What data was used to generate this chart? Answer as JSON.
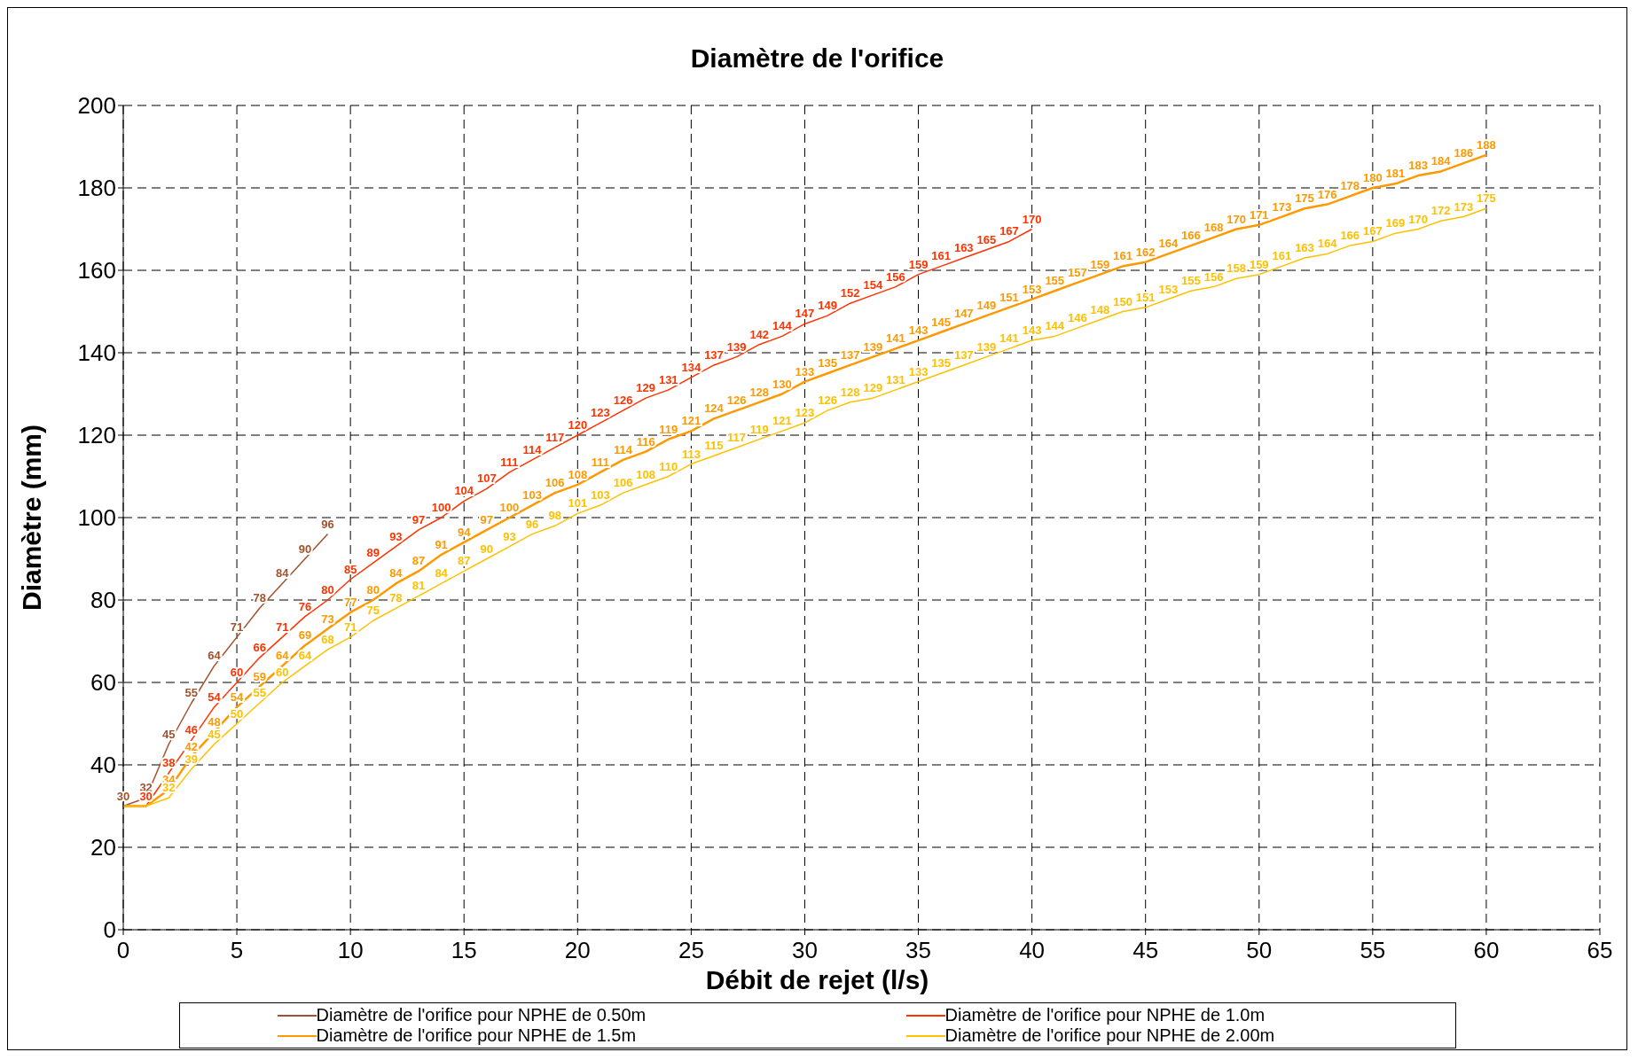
{
  "chart_data": {
    "type": "line",
    "title": "Diamètre de l'orifice",
    "xlabel": "Débit de rejet (l/s)",
    "ylabel": "Diamètre (mm)",
    "xlim": [
      0,
      65
    ],
    "xticks": [
      0,
      5,
      10,
      15,
      20,
      25,
      30,
      35,
      40,
      45,
      50,
      55,
      60,
      65
    ],
    "ylim": [
      0,
      200
    ],
    "yticks": [
      0,
      20,
      40,
      60,
      80,
      100,
      120,
      140,
      160,
      180,
      200
    ],
    "grid": true,
    "legend": "bottom",
    "marker": "none",
    "line_style": "solid",
    "series": [
      {
        "name": "Diamètre de l'orifice pour NPHE de 0.50m",
        "color": "#a0522d",
        "x": [
          0,
          1,
          2,
          3,
          4,
          5,
          6,
          7,
          8,
          9
        ],
        "values": [
          30,
          32,
          45,
          55,
          64,
          71,
          78,
          84,
          90,
          96
        ],
        "value_labels": [
          "30",
          "32",
          "45",
          "55",
          "64",
          "71",
          "78",
          "84",
          "90",
          "96"
        ]
      },
      {
        "name": "Diamètre de l'orifice pour NPHE de 1.0m",
        "color": "#ff3300",
        "x": [
          0,
          1,
          2,
          3,
          4,
          5,
          6,
          7,
          8,
          9,
          10,
          11,
          12,
          13,
          14,
          15,
          16,
          17,
          18,
          19,
          20,
          21,
          22,
          23,
          24,
          25,
          26,
          27,
          28,
          29,
          30,
          31,
          32,
          33,
          34,
          35,
          36,
          37,
          38,
          39,
          40
        ],
        "values": [
          30,
          30,
          38,
          46,
          54,
          60,
          66,
          71,
          76,
          80,
          85,
          89,
          93,
          97,
          100,
          104,
          107,
          111,
          114,
          117,
          120,
          123,
          126,
          129,
          131,
          134,
          137,
          139,
          142,
          144,
          147,
          149,
          152,
          154,
          156,
          159,
          161,
          163,
          165,
          167,
          170
        ],
        "value_labels": [
          null,
          "30",
          "38",
          "46",
          "54",
          "60",
          "66",
          "71",
          "76",
          "80",
          "85",
          "89",
          "93",
          "97",
          "100",
          "104",
          "107",
          "111",
          "114",
          "117",
          "120",
          "123",
          "126",
          "129",
          "131",
          "134",
          "137",
          "139",
          "142",
          "144",
          "147",
          "149",
          "152",
          "154",
          "156",
          "159",
          "161",
          "163",
          "165",
          "167",
          "170"
        ]
      },
      {
        "name": "Diamètre de l'orifice pour NPHE de 1.5m",
        "color": "#ff9900",
        "x": [
          0,
          1,
          2,
          3,
          4,
          5,
          6,
          7,
          8,
          9,
          10,
          11,
          12,
          13,
          14,
          15,
          16,
          17,
          18,
          19,
          20,
          21,
          22,
          23,
          24,
          25,
          26,
          27,
          28,
          29,
          30,
          31,
          32,
          33,
          34,
          35,
          36,
          37,
          38,
          39,
          40,
          41,
          42,
          43,
          44,
          45,
          46,
          47,
          48,
          49,
          50,
          51,
          52,
          53,
          54,
          55,
          56,
          57,
          58,
          59,
          60
        ],
        "values": [
          30,
          30,
          34,
          42,
          48,
          54,
          59,
          64,
          69,
          73,
          77,
          80,
          84,
          87,
          91,
          94,
          97,
          100,
          103,
          106,
          108,
          111,
          114,
          116,
          119,
          121,
          124,
          126,
          128,
          130,
          133,
          135,
          137,
          139,
          141,
          143,
          145,
          147,
          149,
          151,
          153,
          155,
          157,
          159,
          161,
          162,
          164,
          166,
          168,
          170,
          171,
          173,
          175,
          176,
          178,
          180,
          181,
          183,
          184,
          186,
          188
        ],
        "value_labels": [
          null,
          null,
          "34",
          "42",
          "48",
          "54",
          "59",
          "64",
          "69",
          "73",
          "77",
          "80",
          "84",
          "87",
          "91",
          "94",
          "97",
          "100",
          "103",
          "106",
          "108",
          "111",
          "114",
          "116",
          "119",
          "121",
          "124",
          "126",
          "128",
          "130",
          "133",
          "135",
          "137",
          "139",
          "141",
          "143",
          "145",
          "147",
          "149",
          "151",
          "153",
          "155",
          "157",
          "159",
          "161",
          "162",
          "164",
          "166",
          "168",
          "170",
          "171",
          "173",
          "175",
          "176",
          "178",
          "180",
          "181",
          "183",
          "184",
          "186",
          "188"
        ]
      },
      {
        "name": "Diamètre de l'orifice pour NPHE de 2.00m",
        "color": "#ffc000",
        "x": [
          0,
          1,
          2,
          3,
          4,
          5,
          6,
          7,
          8,
          9,
          10,
          11,
          12,
          13,
          14,
          15,
          16,
          17,
          18,
          19,
          20,
          21,
          22,
          23,
          24,
          25,
          26,
          27,
          28,
          29,
          30,
          31,
          32,
          33,
          34,
          35,
          36,
          37,
          38,
          39,
          40,
          41,
          42,
          43,
          44,
          45,
          46,
          47,
          48,
          49,
          50,
          51,
          52,
          53,
          54,
          55,
          56,
          57,
          58,
          59,
          60
        ],
        "values": [
          30,
          30,
          32,
          39,
          45,
          50,
          55,
          60,
          64,
          68,
          71,
          75,
          78,
          81,
          84,
          87,
          90,
          93,
          96,
          98,
          101,
          103,
          106,
          108,
          110,
          113,
          115,
          117,
          119,
          121,
          123,
          126,
          128,
          129,
          131,
          133,
          135,
          137,
          139,
          141,
          143,
          144,
          146,
          148,
          150,
          151,
          153,
          155,
          156,
          158,
          159,
          161,
          163,
          164,
          166,
          167,
          169,
          170,
          172,
          173,
          175
        ],
        "value_labels": [
          null,
          null,
          "32",
          "39",
          "45",
          "50",
          "55",
          "60",
          "64",
          "68",
          "71",
          "75",
          "78",
          "81",
          "84",
          "87",
          "90",
          "93",
          "96",
          "98",
          "101",
          "103",
          "106",
          "108",
          "110",
          "113",
          "115",
          "117",
          "119",
          "121",
          "123",
          "126",
          "128",
          "129",
          "131",
          "133",
          "135",
          "137",
          "139",
          "141",
          "143",
          "144",
          "146",
          "148",
          "150",
          "151",
          "153",
          "155",
          "156",
          "158",
          "159",
          "161",
          "163",
          "164",
          "166",
          "167",
          "169",
          "170",
          "172",
          "173",
          "175"
        ]
      }
    ]
  }
}
